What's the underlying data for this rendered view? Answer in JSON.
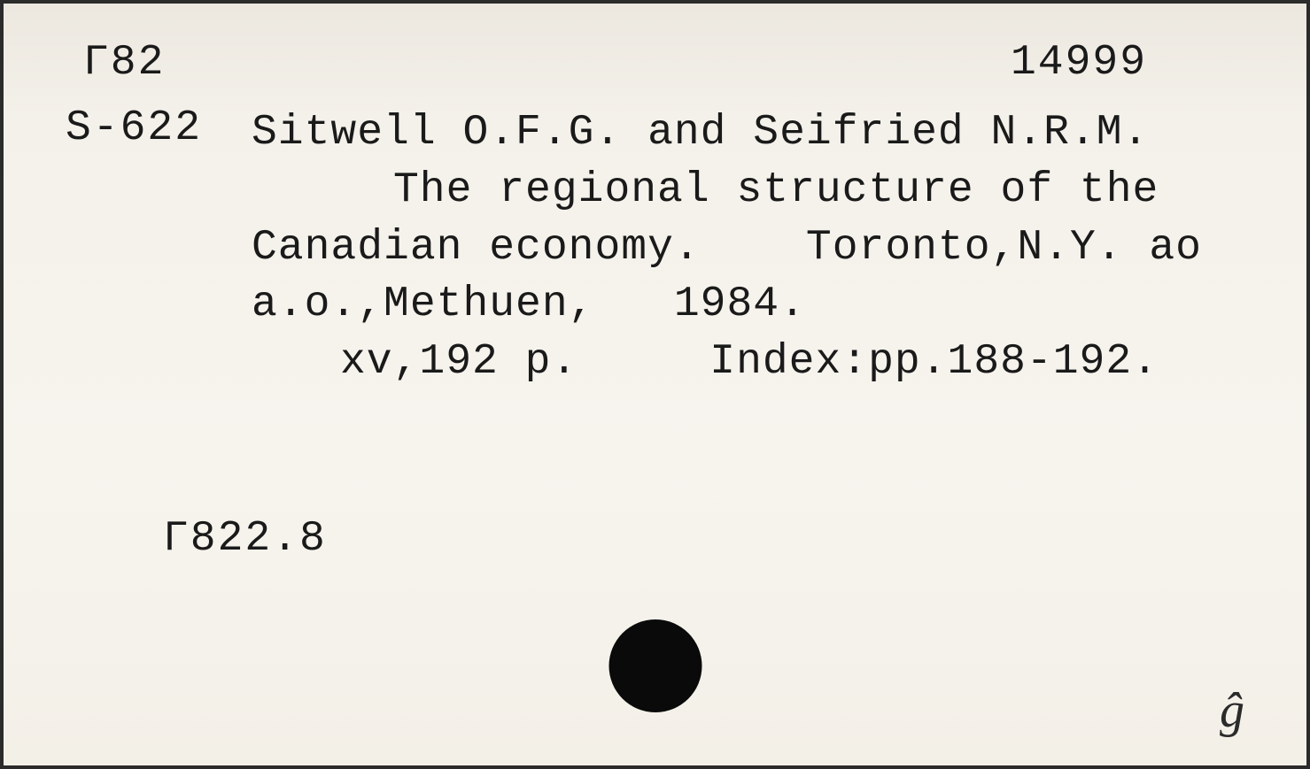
{
  "card": {
    "topLeft": "Г82",
    "topRight": "14999",
    "callNumber": "S-622",
    "lines": {
      "l1": "Sitwell O.F.G. and Seifried N.R.M.",
      "l2": "The regional structure of the",
      "l3": "Canadian economy.    Toronto,N.Y. ao",
      "l4": "a.o.,Methuen,   1984.",
      "l5": "xv,192 p.     Index:pp.188-192."
    },
    "shelf": "Г822.8",
    "cornerMark": "ĝ"
  },
  "style": {
    "background": "#f2efe9",
    "borderColor": "#2b2b2b",
    "textColor": "#1a1a1a",
    "dotColor": "#0a0a0a",
    "fontFamily": "Courier New",
    "fontSizePx": 48,
    "cardWidth": 1479,
    "cardHeight": 869
  }
}
